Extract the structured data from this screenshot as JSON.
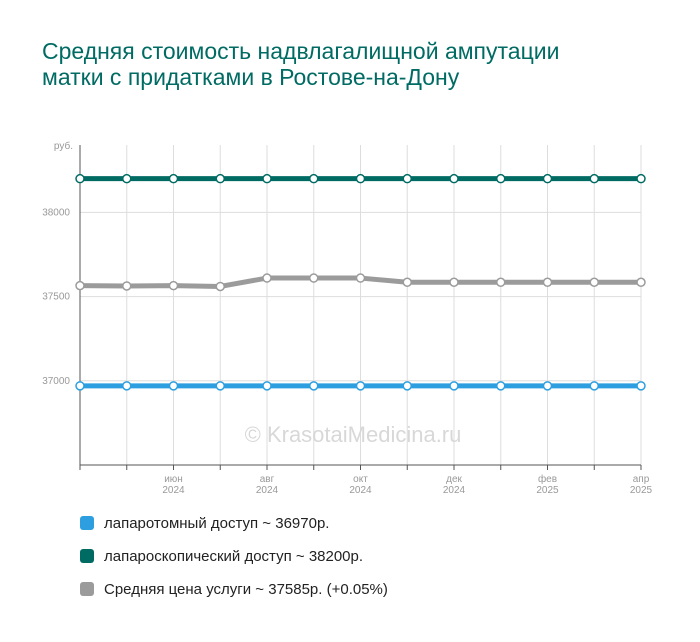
{
  "title": "Средняя стоимость надвлагалищной ампутации матки с придатками в Ростове-на-Дону",
  "watermark": "© KrasotaiMedicina.ru",
  "legend": [
    {
      "label": "лапаротомный доступ ~ 36970р.",
      "color": "#2d9fe0"
    },
    {
      "label": "лапароскопический доступ ~ 38200р.",
      "color": "#006b63"
    },
    {
      "label": "Средняя цена услуги ~ 37585р. (+0.05%)",
      "color": "#9b9b9b"
    }
  ],
  "chart_data": {
    "type": "line",
    "ylabel": "руб.",
    "ylim": [
      36500,
      38400
    ],
    "y_ticks": [
      37000,
      37500,
      38000
    ],
    "grid": true,
    "x": [
      "2024-04",
      "2024-05",
      "2024-06",
      "2024-07",
      "2024-08",
      "2024-09",
      "2024-10",
      "2024-11",
      "2024-12",
      "2025-01",
      "2025-02",
      "2025-03",
      "2025-04"
    ],
    "x_tick_labels": [
      {
        "index": 2,
        "month": "июн",
        "year": "2024"
      },
      {
        "index": 4,
        "month": "авг",
        "year": "2024"
      },
      {
        "index": 6,
        "month": "окт",
        "year": "2024"
      },
      {
        "index": 8,
        "month": "дек",
        "year": "2024"
      },
      {
        "index": 10,
        "month": "фев",
        "year": "2025"
      },
      {
        "index": 12,
        "month": "апр",
        "year": "2025"
      }
    ],
    "series": [
      {
        "name": "лапаротомный доступ",
        "color": "#2d9fe0",
        "values": [
          36970,
          36970,
          36970,
          36970,
          36970,
          36970,
          36970,
          36970,
          36970,
          36970,
          36970,
          36970,
          36970
        ]
      },
      {
        "name": "лапароскопический доступ",
        "color": "#006b63",
        "values": [
          38200,
          38200,
          38200,
          38200,
          38200,
          38200,
          38200,
          38200,
          38200,
          38200,
          38200,
          38200,
          38200
        ]
      },
      {
        "name": "Средняя цена услуги",
        "color": "#9b9b9b",
        "values": [
          37565,
          37563,
          37565,
          37560,
          37610,
          37610,
          37610,
          37585,
          37585,
          37585,
          37585,
          37585,
          37585
        ]
      }
    ]
  }
}
